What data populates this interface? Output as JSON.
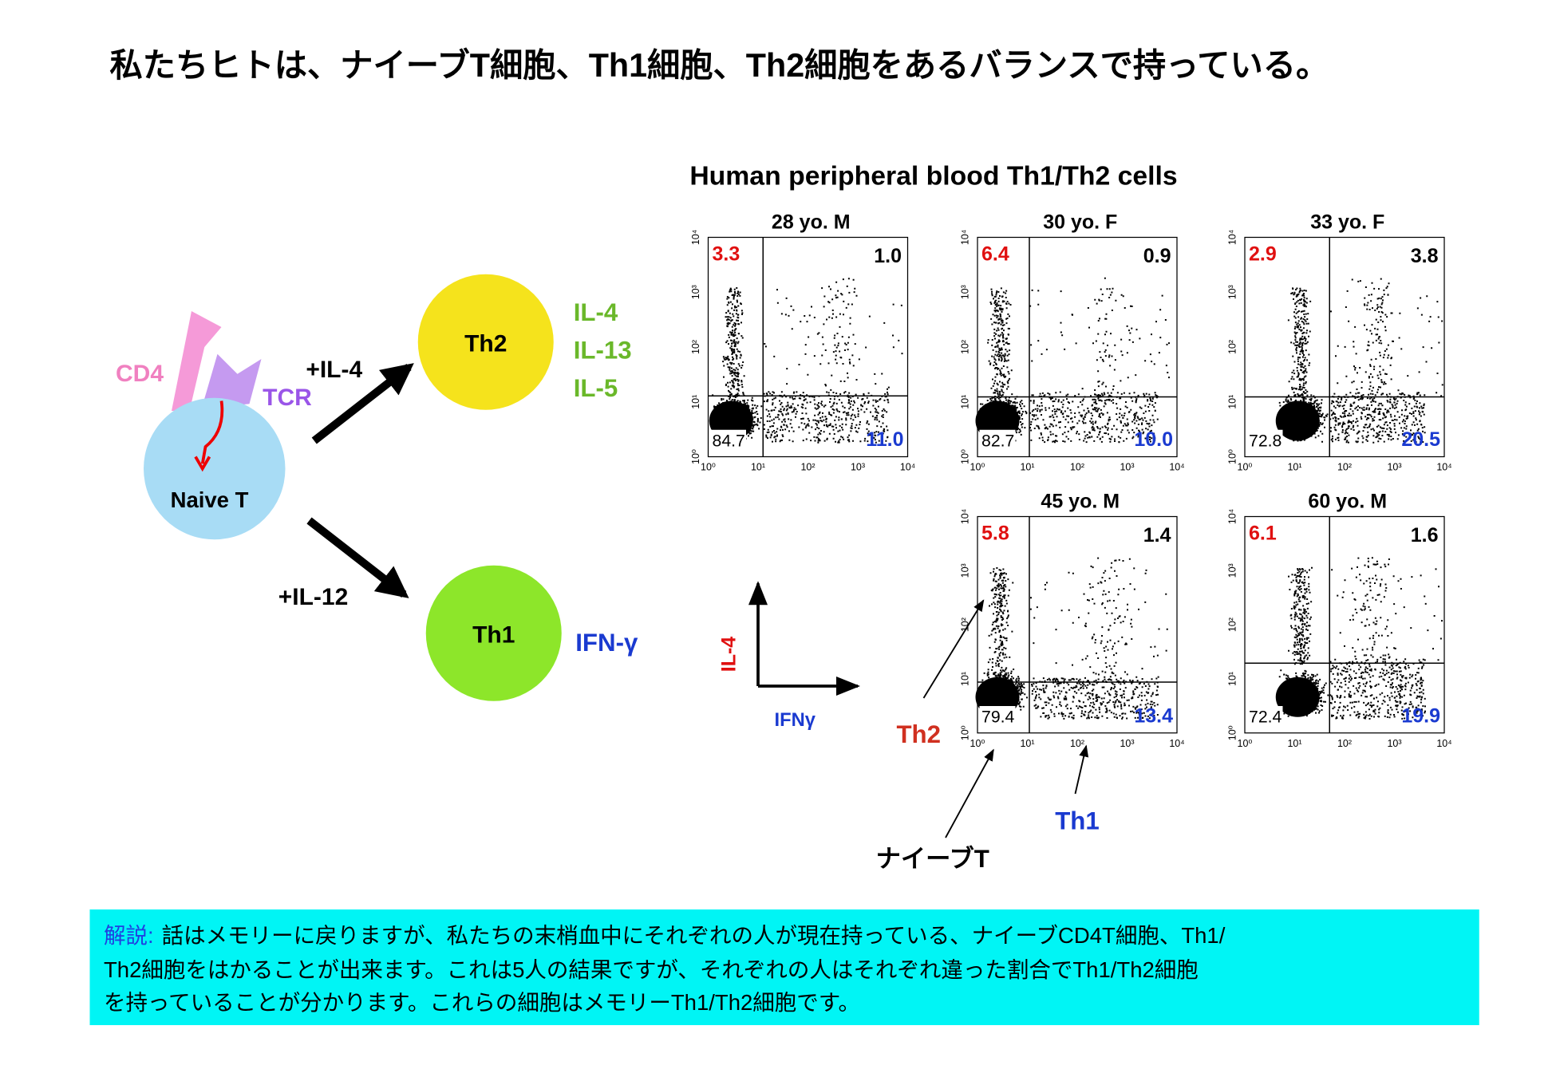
{
  "title": "私たちヒトは、ナイーブT細胞、Th1細胞、Th2細胞をあるバランスで持っている。",
  "diagram": {
    "naive": "Naive T",
    "cd4": "CD4",
    "tcr": "TCR",
    "th2": "Th2",
    "th1": "Th1",
    "il4_arrow": "+IL-4",
    "il12_arrow": "+IL-12",
    "th2_cytokines": [
      "IL-4",
      "IL-13",
      "IL-5"
    ],
    "th1_cytokine": "IFN-γ"
  },
  "flow": {
    "title": "Human peripheral blood Th1/Th2 cells",
    "tick_labels": [
      "10⁰",
      "10¹",
      "10²",
      "10³",
      "10⁴"
    ],
    "plots": [
      {
        "label": "28 yo. M",
        "ul": "3.3",
        "ur": "1.0",
        "ll": "84.7",
        "lr": "11.0"
      },
      {
        "label": "30 yo. F",
        "ul": "6.4",
        "ur": "0.9",
        "ll": "82.7",
        "lr": "10.0"
      },
      {
        "label": "33 yo. F",
        "ul": "2.9",
        "ur": "3.8",
        "ll": "72.8",
        "lr": "20.5"
      },
      {
        "label": "45 yo. M",
        "ul": "5.8",
        "ur": "1.4",
        "ll": "79.4",
        "lr": "13.4"
      },
      {
        "label": "60 yo. M",
        "ul": "6.1",
        "ur": "1.6",
        "ll": "72.4",
        "lr": "19.9"
      }
    ],
    "axis_y": "IL-4",
    "axis_x": "IFNγ",
    "annotations": {
      "th2": "Th2",
      "th1": "Th1",
      "naive": "ナイーブT"
    }
  },
  "note": {
    "label": "解説:",
    "lines": [
      "話はメモリーに戻りますが、私たちの末梢血中にそれぞれの人が現在持っている、ナイーブCD4T細胞、Th1/",
      "Th2細胞をはかることが出来ます。これは5人の結果ですが、それぞれの人はそれぞれ違った割合でTh1/Th2細胞",
      "を持っていることが分かります。これらの細胞はメモリーTh1/Th2細胞です。"
    ]
  }
}
